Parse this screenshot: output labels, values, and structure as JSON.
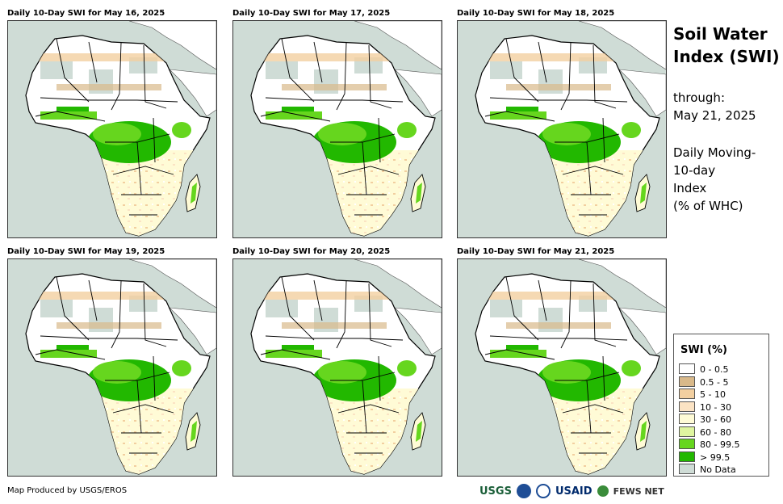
{
  "panels": [
    {
      "title": "Daily 10-Day SWI for May 16, 2025"
    },
    {
      "title": "Daily 10-Day SWI for May 17, 2025"
    },
    {
      "title": "Daily 10-Day SWI for May 18, 2025"
    },
    {
      "title": "Daily 10-Day SWI for May 19, 2025"
    },
    {
      "title": "Daily 10-Day SWI for May 20, 2025"
    },
    {
      "title": "Daily 10-Day SWI for May 21, 2025"
    }
  ],
  "side": {
    "title_line1": "Soil Water",
    "title_line2": "Index (SWI)",
    "through_label": "through:",
    "through_date": "May 21, 2025",
    "desc_line1": "Daily Moving-",
    "desc_line2": "10-day",
    "desc_line3": "Index",
    "desc_line4": "(% of WHC)"
  },
  "legend": {
    "title": "SWI (%)",
    "items": [
      {
        "label": "0 - 0.5",
        "color": "#ffffff"
      },
      {
        "label": "0.5 - 5",
        "color": "#d9b98a"
      },
      {
        "label": "5 - 10",
        "color": "#f2cfa0"
      },
      {
        "label": "10 - 30",
        "color": "#fbe3c4"
      },
      {
        "label": "30 - 60",
        "color": "#fffbd6"
      },
      {
        "label": "60 - 80",
        "color": "#dff5a0"
      },
      {
        "label": "80 - 99.5",
        "color": "#66d61e"
      },
      {
        "label": "> 99.5",
        "color": "#22b800"
      },
      {
        "label": "No Data",
        "color": "#cfdcd6"
      }
    ]
  },
  "credit": "Map Produced by USGS/EROS",
  "logos": {
    "usgs": "USGS",
    "usaid": "USAID",
    "fews": "FEWS NET"
  }
}
